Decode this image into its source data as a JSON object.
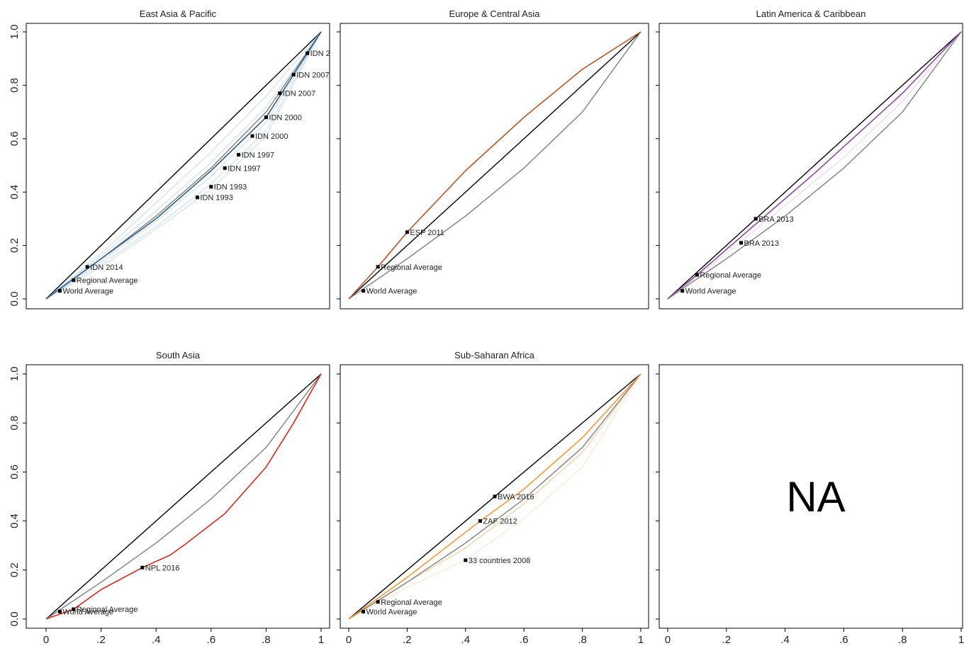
{
  "chart_data": [
    {
      "type": "line",
      "title": "East Asia & Pacific",
      "xticks": [
        "0",
        ".2",
        ".4",
        ".6",
        ".8",
        "1"
      ],
      "yticks": [
        "0.0",
        "0.2",
        "0.4",
        "0.6",
        "0.8",
        "1.0"
      ],
      "xlim": [
        0,
        1
      ],
      "ylim": [
        0,
        1
      ],
      "series": [
        {
          "color": "#000000",
          "width": 1.4,
          "x": [
            0,
            1
          ],
          "y": [
            0,
            1
          ]
        },
        {
          "color": "#c9dcec",
          "width": 1,
          "x": [
            0,
            0.2,
            0.4,
            0.6,
            0.8,
            1
          ],
          "y": [
            0,
            0.17,
            0.36,
            0.55,
            0.76,
            1
          ]
        },
        {
          "color": "#c9dcec",
          "width": 1,
          "x": [
            0,
            0.2,
            0.4,
            0.6,
            0.8,
            1
          ],
          "y": [
            0,
            0.16,
            0.33,
            0.51,
            0.72,
            1
          ]
        },
        {
          "color": "#c9dcec",
          "width": 1,
          "x": [
            0,
            0.2,
            0.4,
            0.6,
            0.8,
            1
          ],
          "y": [
            0,
            0.14,
            0.29,
            0.46,
            0.66,
            1
          ]
        },
        {
          "color": "#c9dcec",
          "width": 1,
          "x": [
            0,
            0.2,
            0.4,
            0.6,
            0.8,
            1
          ],
          "y": [
            0,
            0.13,
            0.27,
            0.43,
            0.63,
            1
          ]
        },
        {
          "color": "#c9dcec",
          "width": 1,
          "x": [
            0,
            0.2,
            0.4,
            0.6,
            0.8,
            1
          ],
          "y": [
            0,
            0.12,
            0.26,
            0.41,
            0.61,
            1
          ]
        },
        {
          "color": "#7f7f7f",
          "width": 1.4,
          "x": [
            0,
            0.2,
            0.4,
            0.6,
            0.8,
            1
          ],
          "y": [
            0,
            0.15,
            0.31,
            0.49,
            0.7,
            1
          ]
        },
        {
          "color": "#2e5f8a",
          "width": 1.6,
          "x": [
            0,
            0.2,
            0.4,
            0.6,
            0.8,
            1
          ],
          "y": [
            0,
            0.15,
            0.3,
            0.48,
            0.68,
            1
          ]
        }
      ],
      "points": [
        {
          "x": 0.95,
          "y": 0.92,
          "label": "IDN 2"
        },
        {
          "x": 0.9,
          "y": 0.84,
          "label": "IDN 2007"
        },
        {
          "x": 0.85,
          "y": 0.77,
          "label": "IDN 2007"
        },
        {
          "x": 0.8,
          "y": 0.68,
          "label": "IDN 2000"
        },
        {
          "x": 0.75,
          "y": 0.61,
          "label": "IDN 2000"
        },
        {
          "x": 0.7,
          "y": 0.54,
          "label": "IDN 1997"
        },
        {
          "x": 0.65,
          "y": 0.49,
          "label": "IDN 1997"
        },
        {
          "x": 0.6,
          "y": 0.42,
          "label": "IDN 1993"
        },
        {
          "x": 0.55,
          "y": 0.38,
          "label": "IDN 1993"
        },
        {
          "x": 0.15,
          "y": 0.12,
          "label": "IDN 2014"
        },
        {
          "x": 0.1,
          "y": 0.07,
          "label": "Regional Average"
        },
        {
          "x": 0.05,
          "y": 0.03,
          "label": "World Average"
        }
      ]
    },
    {
      "type": "line",
      "title": "Europe & Central Asia",
      "xticks": [
        "0",
        ".2",
        ".4",
        ".6",
        ".8",
        "1"
      ],
      "yticks": [
        "0.0",
        "0.2",
        "0.4",
        "0.6",
        "0.8",
        "1.0"
      ],
      "xlim": [
        0,
        1
      ],
      "ylim": [
        0,
        1
      ],
      "series": [
        {
          "color": "#000000",
          "width": 1.4,
          "x": [
            0,
            1
          ],
          "y": [
            0,
            1
          ]
        },
        {
          "color": "#7f7f7f",
          "width": 1.4,
          "x": [
            0,
            0.2,
            0.4,
            0.6,
            0.8,
            1
          ],
          "y": [
            0,
            0.15,
            0.31,
            0.49,
            0.7,
            1
          ]
        },
        {
          "color": "#b5572b",
          "width": 1.6,
          "x": [
            0,
            0.1,
            0.2,
            0.4,
            0.6,
            0.7,
            0.8,
            1
          ],
          "y": [
            0,
            0.12,
            0.25,
            0.48,
            0.68,
            0.77,
            0.86,
            1
          ]
        }
      ],
      "points": [
        {
          "x": 0.2,
          "y": 0.25,
          "label": "ESP 2011"
        },
        {
          "x": 0.1,
          "y": 0.12,
          "label": "Regional Average"
        },
        {
          "x": 0.05,
          "y": 0.03,
          "label": "World Average"
        }
      ]
    },
    {
      "type": "line",
      "title": "Latin America & Caribbean",
      "xticks": [
        "0",
        ".2",
        ".4",
        ".6",
        ".8",
        "1"
      ],
      "yticks": [
        "0.0",
        "0.2",
        "0.4",
        "0.6",
        "0.8",
        "1.0"
      ],
      "xlim": [
        0,
        1
      ],
      "ylim": [
        0,
        1
      ],
      "series": [
        {
          "color": "#000000",
          "width": 1.4,
          "x": [
            0,
            1
          ],
          "y": [
            0,
            1
          ]
        },
        {
          "color": "#7f7f7f",
          "width": 1.4,
          "x": [
            0,
            0.2,
            0.4,
            0.6,
            0.8,
            1
          ],
          "y": [
            0,
            0.15,
            0.31,
            0.49,
            0.7,
            1
          ]
        },
        {
          "color": "#e6d3ea",
          "width": 1,
          "x": [
            0,
            0.2,
            0.4,
            0.6,
            0.8,
            1
          ],
          "y": [
            0,
            0.17,
            0.35,
            0.53,
            0.74,
            1
          ]
        },
        {
          "color": "#8b4a9c",
          "width": 1.6,
          "x": [
            0,
            0.1,
            0.3,
            0.5,
            0.8,
            1
          ],
          "y": [
            0,
            0.09,
            0.28,
            0.47,
            0.77,
            1
          ]
        }
      ],
      "points": [
        {
          "x": 0.3,
          "y": 0.3,
          "label": "BRA 2013"
        },
        {
          "x": 0.25,
          "y": 0.21,
          "label": "BRA 2013"
        },
        {
          "x": 0.1,
          "y": 0.09,
          "label": "Regional Average"
        },
        {
          "x": 0.05,
          "y": 0.03,
          "label": "World Average"
        }
      ]
    },
    {
      "type": "line",
      "title": "South Asia",
      "xticks": [
        "0",
        ".2",
        ".4",
        ".6",
        ".8",
        "1"
      ],
      "yticks": [
        "0.0",
        "0.2",
        "0.4",
        "0.6",
        "0.8",
        "1.0"
      ],
      "xlim": [
        0,
        1
      ],
      "ylim": [
        0,
        1
      ],
      "series": [
        {
          "color": "#000000",
          "width": 1.4,
          "x": [
            0,
            1
          ],
          "y": [
            0,
            1
          ]
        },
        {
          "color": "#7f7f7f",
          "width": 1.4,
          "x": [
            0,
            0.2,
            0.4,
            0.6,
            0.8,
            1
          ],
          "y": [
            0,
            0.15,
            0.31,
            0.49,
            0.7,
            1
          ]
        },
        {
          "color": "#d62a1e",
          "width": 1.6,
          "x": [
            0,
            0.05,
            0.1,
            0.2,
            0.35,
            0.45,
            0.5,
            0.65,
            0.8,
            0.9,
            1
          ],
          "y": [
            0,
            0.02,
            0.04,
            0.12,
            0.21,
            0.26,
            0.3,
            0.43,
            0.62,
            0.8,
            1
          ]
        }
      ],
      "points": [
        {
          "x": 0.35,
          "y": 0.21,
          "label": "NPL 2016"
        },
        {
          "x": 0.1,
          "y": 0.04,
          "label": "Regional Average"
        },
        {
          "x": 0.05,
          "y": 0.03,
          "label": "World Average"
        }
      ]
    },
    {
      "type": "line",
      "title": "Sub-Saharan Africa",
      "xticks": [
        "0",
        ".2",
        ".4",
        ".6",
        ".8",
        "1"
      ],
      "yticks": [
        "0.0",
        "0.2",
        "0.4",
        "0.6",
        "0.8",
        "1.0"
      ],
      "xlim": [
        0,
        1
      ],
      "ylim": [
        0,
        1
      ],
      "series": [
        {
          "color": "#000000",
          "width": 1.4,
          "x": [
            0,
            1
          ],
          "y": [
            0,
            1
          ]
        },
        {
          "color": "#fde3c6",
          "width": 1,
          "x": [
            0,
            0.2,
            0.4,
            0.6,
            0.8,
            1
          ],
          "y": [
            0,
            0.13,
            0.24,
            0.41,
            0.62,
            1
          ]
        },
        {
          "color": "#f7c48e",
          "width": 1,
          "x": [
            0,
            0.2,
            0.4,
            0.6,
            0.8,
            1
          ],
          "y": [
            0,
            0.15,
            0.29,
            0.47,
            0.68,
            1
          ]
        },
        {
          "color": "#7f7f7f",
          "width": 1.4,
          "x": [
            0,
            0.2,
            0.4,
            0.6,
            0.8,
            1
          ],
          "y": [
            0,
            0.15,
            0.31,
            0.49,
            0.7,
            1
          ]
        },
        {
          "color": "#f29a3c",
          "width": 1.6,
          "x": [
            0,
            0.2,
            0.45,
            0.6,
            0.8,
            1
          ],
          "y": [
            0,
            0.17,
            0.4,
            0.53,
            0.74,
            1
          ]
        }
      ],
      "points": [
        {
          "x": 0.5,
          "y": 0.5,
          "label": "BWA 2016"
        },
        {
          "x": 0.45,
          "y": 0.4,
          "label": "ZAF 2012"
        },
        {
          "x": 0.4,
          "y": 0.24,
          "label": "33 countries 2008"
        },
        {
          "x": 0.1,
          "y": 0.07,
          "label": "Regional Average"
        },
        {
          "x": 0.05,
          "y": 0.03,
          "label": "World Average"
        }
      ]
    },
    {
      "type": "line",
      "title": "",
      "placeholder": "NA",
      "xticks": [
        "0",
        ".2",
        ".4",
        ".6",
        ".8",
        "1"
      ],
      "yticks": [
        "0.0",
        "0.2",
        "0.4",
        "0.6",
        "0.8",
        "1.0"
      ],
      "xlim": [
        0,
        1
      ],
      "ylim": [
        0,
        1
      ],
      "series": [],
      "points": []
    }
  ]
}
